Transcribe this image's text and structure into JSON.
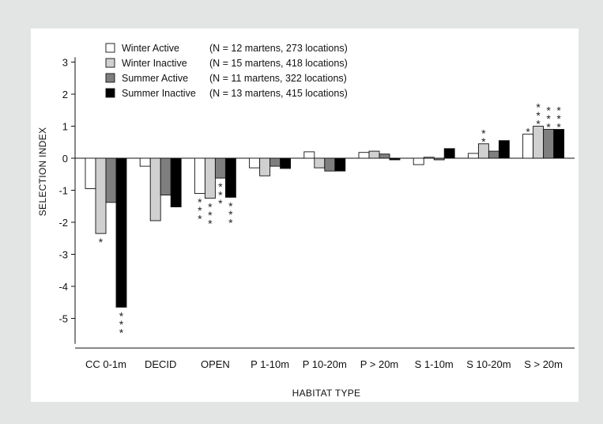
{
  "chart_data": {
    "type": "bar",
    "title": "",
    "xlabel": "HABITAT TYPE",
    "ylabel": "SELECTION INDEX",
    "ylim": [
      -5.5,
      3.2
    ],
    "yticks": [
      "3",
      "2",
      "1",
      "0",
      "-1",
      "-2",
      "-3",
      "-4",
      "-5"
    ],
    "ytick_values": [
      3,
      2,
      1,
      0,
      -1,
      -2,
      -3,
      -4,
      -5
    ],
    "categories": [
      "CC 0-1m",
      "DECID",
      "OPEN",
      "P 1-10m",
      "P 10-20m",
      "P > 20m",
      "S 1-10m",
      "S 10-20m",
      "S > 20m"
    ],
    "series": [
      {
        "name": "Winter Active",
        "n_label": "(N = 12 martens, 273 locations)",
        "color": "#ffffff",
        "values": [
          -0.95,
          -0.25,
          -1.1,
          -0.3,
          0.2,
          0.18,
          -0.2,
          0.15,
          0.75
        ]
      },
      {
        "name": "Winter Inactive",
        "n_label": "(N = 15 martens, 418 locations)",
        "color": "#d0d0d0",
        "values": [
          -2.35,
          -1.95,
          -1.25,
          -0.55,
          -0.3,
          0.22,
          0.03,
          0.45,
          1.0
        ]
      },
      {
        "name": "Summer Active",
        "n_label": "(N = 11 martens, 322 locations)",
        "color": "#7f7f7f",
        "values": [
          -1.38,
          -1.15,
          -0.62,
          -0.25,
          -0.4,
          0.13,
          -0.05,
          0.22,
          0.9
        ]
      },
      {
        "name": "Summer Inactive",
        "n_label": "(N = 13 martens, 415 locations)",
        "color": "#000000",
        "values": [
          -4.65,
          -1.52,
          -1.22,
          -0.32,
          -0.4,
          -0.05,
          0.3,
          0.55,
          0.9
        ]
      }
    ],
    "annotations": [
      {
        "category": 0,
        "series": 1,
        "stars": 1
      },
      {
        "category": 0,
        "series": 3,
        "stars": 3
      },
      {
        "category": 2,
        "series": 0,
        "stars": 3
      },
      {
        "category": 2,
        "series": 1,
        "stars": 3
      },
      {
        "category": 2,
        "series": 2,
        "stars": 3
      },
      {
        "category": 2,
        "series": 3,
        "stars": 3
      },
      {
        "category": 7,
        "series": 1,
        "stars": 2
      },
      {
        "category": 8,
        "series": 0,
        "stars": 1
      },
      {
        "category": 8,
        "series": 1,
        "stars": 3
      },
      {
        "category": 8,
        "series": 2,
        "stars": 3
      },
      {
        "category": 8,
        "series": 3,
        "stars": 3
      }
    ],
    "annotation_symbol": "*",
    "legend_position": "top-left",
    "grid": false
  }
}
